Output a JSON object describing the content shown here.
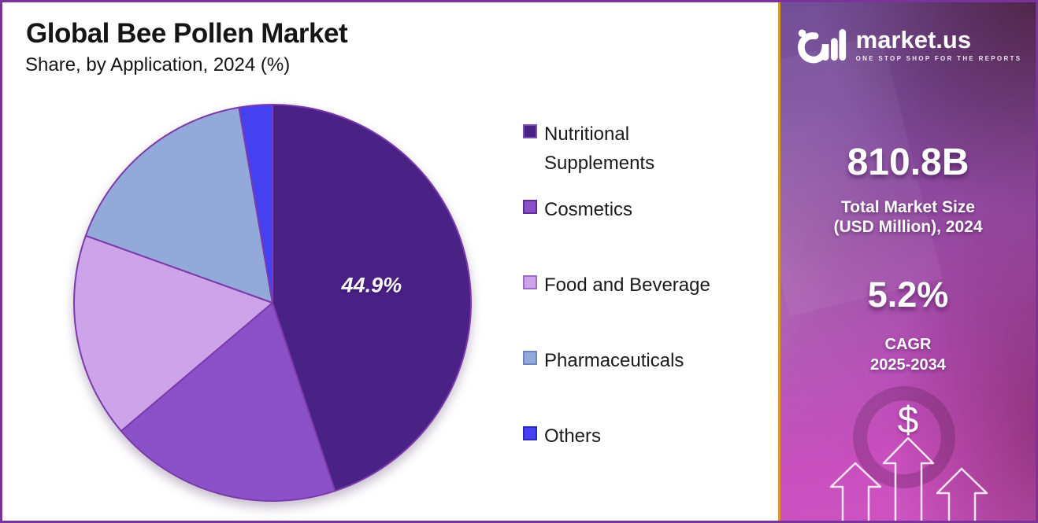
{
  "header": {
    "title": "Global Bee Pollen Market",
    "subtitle": "Share, by Application, 2024 (%)"
  },
  "chart_data": {
    "type": "pie",
    "title": "Global Bee Pollen Market",
    "subtitle": "Share, by Application, 2024 (%)",
    "unit": "%",
    "direction": "clockwise",
    "start_angle_deg": 0,
    "legend_position": "right",
    "slice_stroke": "#7C3AAB",
    "segments": [
      {
        "label": "Nutritional Supplements",
        "value": 44.9,
        "color": "#4A2185",
        "legend_border": "#7B4FB5",
        "data_label": "44.9%"
      },
      {
        "label": "Cosmetics",
        "value": 18.9,
        "color": "#8B51C9",
        "legend_border": "#5E2F96",
        "data_label": ""
      },
      {
        "label": "Food and Beverage",
        "value": 16.7,
        "color": "#CDA3E9",
        "legend_border": "#9C6CC7",
        "data_label": ""
      },
      {
        "label": "Pharmaceuticals",
        "value": 16.8,
        "color": "#93A9D9",
        "legend_border": "#6F83C2",
        "data_label": ""
      },
      {
        "label": "Others",
        "value": 2.7,
        "color": "#4540F0",
        "legend_border": "#2F28C0",
        "data_label": ""
      }
    ]
  },
  "sidebar": {
    "brand": {
      "name": "market.us",
      "tagline": "ONE STOP SHOP FOR THE REPORTS"
    },
    "stats": [
      {
        "value": "810.8B",
        "caption_line1": "Total Market Size",
        "caption_line2": "(USD Million), 2024"
      },
      {
        "value": "5.2%",
        "caption_line1": "CAGR",
        "caption_line2": "2025-2034"
      }
    ],
    "dollar_symbol": "$",
    "colors": {
      "border_gold": "#DD9A28",
      "outer_border_purple": "#7B3399",
      "gradient_top": "#6A4691",
      "gradient_bottom": "#CF55C3"
    }
  }
}
